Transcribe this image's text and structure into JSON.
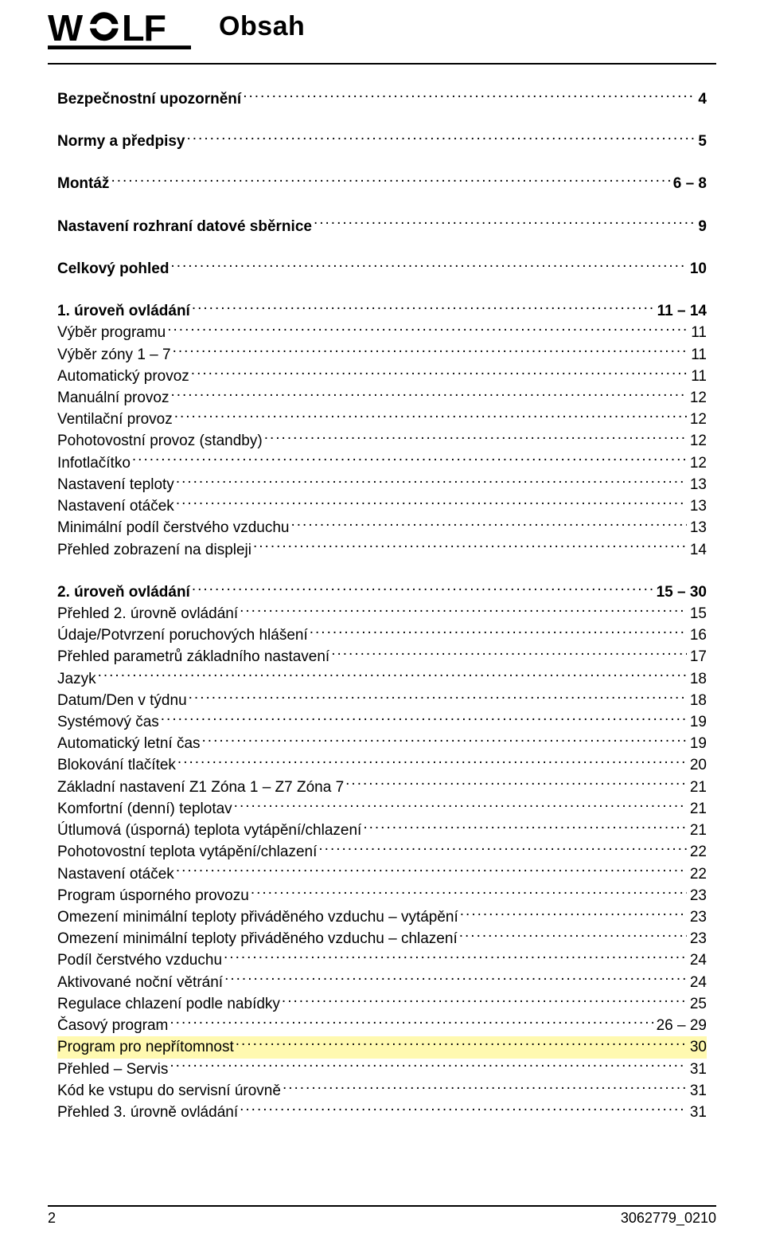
{
  "header": {
    "title": "Obsah",
    "logo_alt": "WOLF"
  },
  "toc": [
    {
      "sectionBreak": true
    },
    {
      "label": "Bezpečnostní upozornění",
      "page": "4",
      "bold": true
    },
    {
      "sectionBreak": true
    },
    {
      "label": "Normy a předpisy",
      "page": "5",
      "bold": true
    },
    {
      "sectionBreak": true
    },
    {
      "label": "Montáž",
      "page": "6 – 8",
      "bold": true
    },
    {
      "sectionBreak": true
    },
    {
      "label": "Nastavení rozhraní datové sběrnice",
      "page": "9",
      "bold": true
    },
    {
      "sectionBreak": true
    },
    {
      "label": "Celkový pohled",
      "page": "10",
      "bold": true
    },
    {
      "sectionBreak": true
    },
    {
      "label": "1. úroveň ovládání",
      "page": "11 – 14",
      "bold": true
    },
    {
      "label": "Výběr programu",
      "page": "11",
      "indent": true
    },
    {
      "label": "Výběr zóny 1 – 7",
      "page": "11",
      "indent": true
    },
    {
      "label": "Automatický provoz",
      "page": "11",
      "indent": true
    },
    {
      "label": "Manuální provoz",
      "page": "12",
      "indent": true
    },
    {
      "label": "Ventilační provoz",
      "page": "12",
      "indent": true
    },
    {
      "label": "Pohotovostní provoz (standby)",
      "page": "12",
      "indent": true
    },
    {
      "label": "Infotlačítko",
      "page": "12",
      "indent": true
    },
    {
      "label": "Nastavení teploty",
      "page": "13",
      "indent": true
    },
    {
      "label": "Nastavení otáček",
      "page": "13",
      "indent": true
    },
    {
      "label": "Minimální podíl čerstvého vzduchu",
      "page": "13",
      "indent": true
    },
    {
      "label": "Přehled zobrazení na displeji",
      "page": "14",
      "indent": true
    },
    {
      "sectionBreak": true
    },
    {
      "label": "2. úroveň ovládání",
      "page": "15 – 30",
      "bold": true
    },
    {
      "label": "Přehled 2. úrovně ovládání",
      "page": "15",
      "indent": true
    },
    {
      "label": "Údaje/Potvrzení poruchových hlášení",
      "page": "16",
      "indent": true
    },
    {
      "label": "Přehled parametrů základního nastavení",
      "page": "17",
      "indent": true
    },
    {
      "label": "Jazyk",
      "page": "18",
      "indent": true
    },
    {
      "label": "Datum/Den v týdnu",
      "page": "18",
      "indent": true
    },
    {
      "label": "Systémový čas",
      "page": "19",
      "indent": true
    },
    {
      "label": "Automatický letní čas",
      "page": "19",
      "indent": true
    },
    {
      "label": "Blokování tlačítek",
      "page": "20",
      "indent": true
    },
    {
      "label": "Základní nastavení Z1 Zóna 1 –  Z7 Zóna 7",
      "page": "21",
      "indent": true
    },
    {
      "label": "Komfortní (denní) teplotav",
      "page": "21",
      "indent": true
    },
    {
      "label": "Útlumová (úsporná) teplota vytápění/chlazení",
      "page": "21",
      "indent": true
    },
    {
      "label": "Pohotovostní teplota vytápění/chlazení",
      "page": "22",
      "indent": true
    },
    {
      "label": "Nastavení otáček",
      "page": "22",
      "indent": true
    },
    {
      "label": "Program úsporného provozu",
      "page": "23",
      "indent": true
    },
    {
      "label": "Omezení minimální teploty přiváděného vzduchu – vytápění",
      "page": "23",
      "indent": true
    },
    {
      "label": "Omezení minimální teploty přiváděného vzduchu – chlazení",
      "page": "23",
      "indent": true
    },
    {
      "label": "Podíl čerstvého vzduchu",
      "page": "24",
      "indent": true
    },
    {
      "label": "Aktivované noční větrání",
      "page": "24",
      "indent": true
    },
    {
      "label": "Regulace chlazení podle nabídky",
      "page": "25",
      "indent": true
    },
    {
      "label": "Časový program",
      "page": "26 – 29",
      "indent": true
    },
    {
      "label": "Program pro nepřítomnost",
      "page": "30",
      "indent": true,
      "highlight": true
    },
    {
      "label": "Přehled – Servis",
      "page": "31",
      "indent": true
    },
    {
      "label": "Kód ke vstupu do servisní úrovně",
      "page": "31",
      "indent": true
    },
    {
      "label": "Přehled 3. úrovně ovládání",
      "page": "31",
      "indent": true
    }
  ],
  "footer": {
    "page_number": "2",
    "doc_code": "3062779_0210"
  },
  "colors": {
    "highlight_bg": "#fff9b0",
    "text": "#000000",
    "rule": "#000000",
    "background": "#ffffff"
  },
  "typography": {
    "body_fontsize_pt": 14,
    "title_fontsize_pt": 26,
    "font_family": "Arial"
  }
}
